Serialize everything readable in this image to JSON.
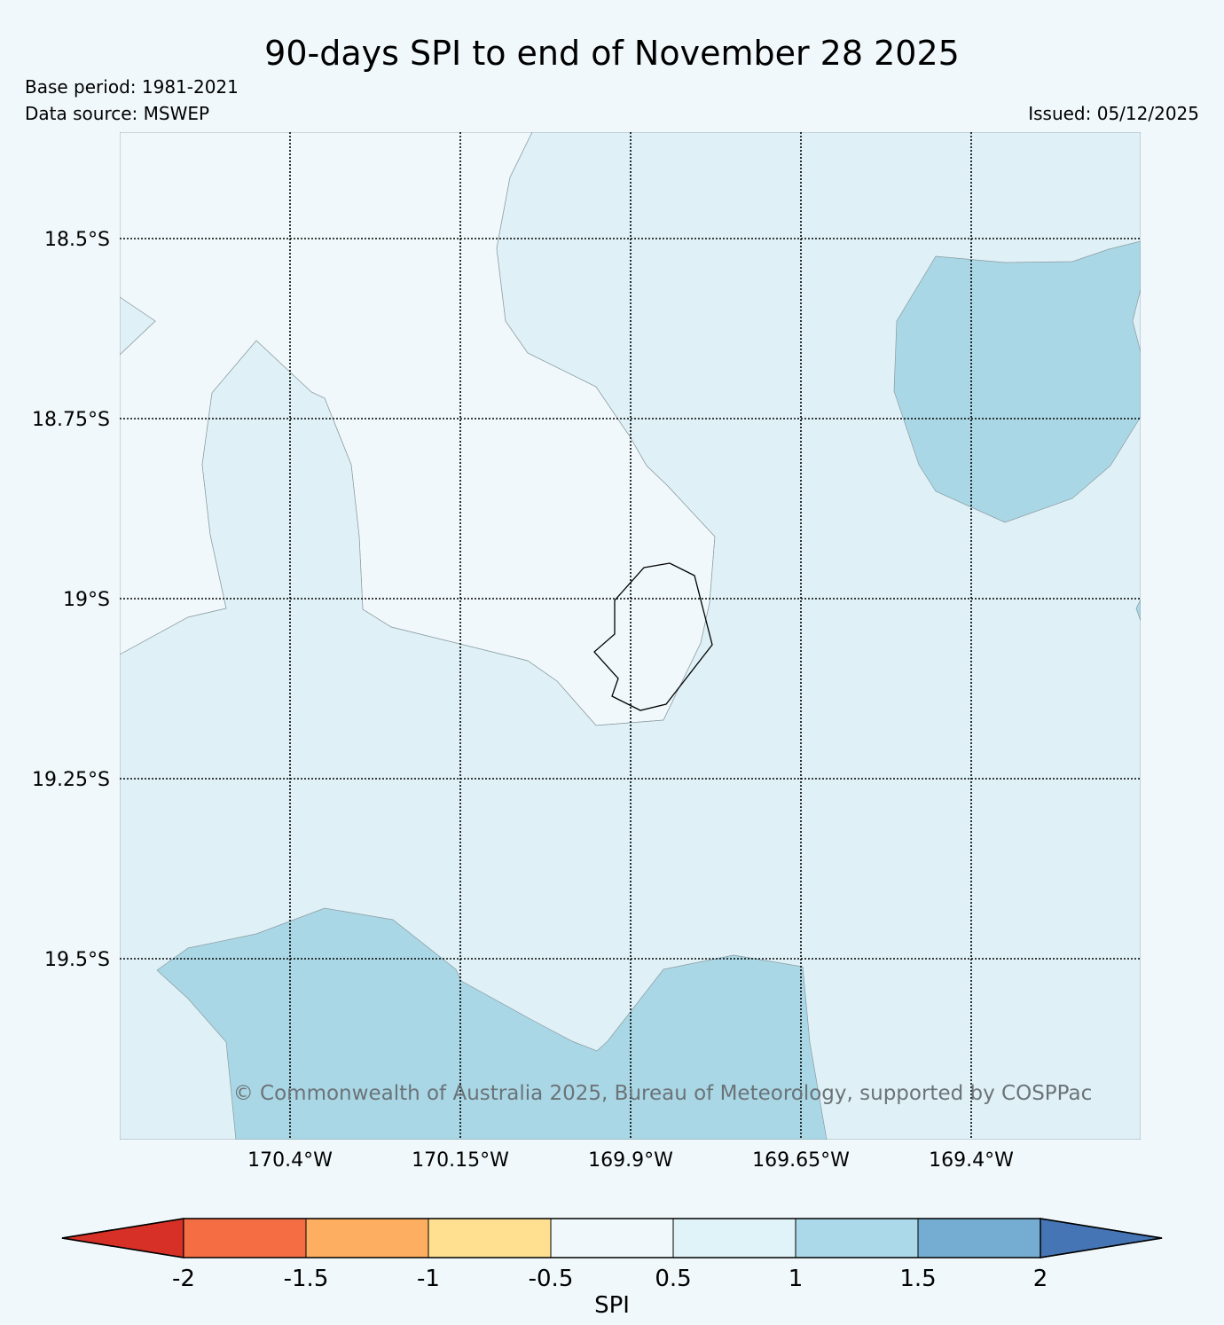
{
  "title": "90-days SPI to end of November 28 2025",
  "base_period": "Base period: 1981-2021",
  "data_source": "Data source: MSWEP",
  "issued": "Issued: 05/12/2025",
  "copyright": "© Commonwealth of Australia 2025, Bureau of Meteorology, supported by COSPPac",
  "map": {
    "lat_labels": [
      "18.5°S",
      "18.75°S",
      "19°S",
      "19.25°S",
      "19.5°S"
    ],
    "lon_labels": [
      "170.4°W",
      "170.15°W",
      "169.9°W",
      "169.65°W",
      "169.4°W"
    ],
    "colors": {
      "near_normal": "#f0f8fb",
      "moderately_wet": "#dff1f7",
      "very_wet": "#aad7e5",
      "gridline": "#000000",
      "coastline": "#000000"
    }
  },
  "colorbar": {
    "label": "SPI",
    "ticks": [
      "-2",
      "-1.5",
      "-1",
      "-0.5",
      "0.5",
      "1",
      "1.5",
      "2"
    ],
    "colors": [
      "#d73027",
      "#f46d43",
      "#fdae61",
      "#fee090",
      "#f0f8fb",
      "#e0f3f8",
      "#abd9e9",
      "#74add1",
      "#4575b4"
    ]
  }
}
